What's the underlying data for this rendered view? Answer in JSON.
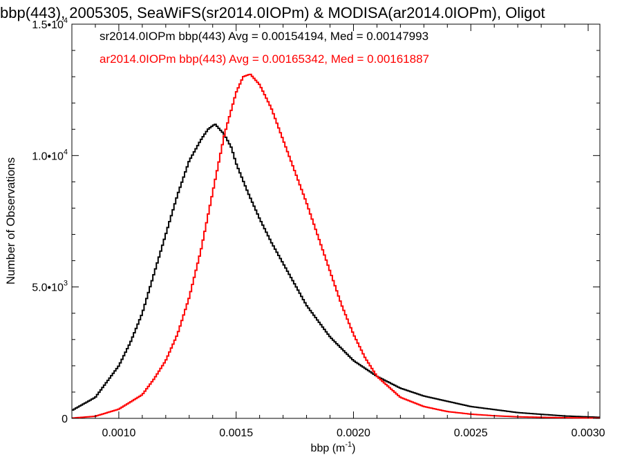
{
  "chart_data": {
    "type": "line",
    "title": "bbp(443), 2005305, SeaWiFS(sr2014.0IOPm) & MODISA(ar2014.0IOPm), Oligot",
    "xlabel": "bbp (m",
    "xlabel_sup": "-1",
    "xlabel_close": ")",
    "ylabel": "Number of Observations",
    "xlim": [
      0.0008,
      0.00305
    ],
    "ylim": [
      0,
      15000
    ],
    "x_ticks": [
      {
        "value": 0.001,
        "label": "0.0010"
      },
      {
        "value": 0.0015,
        "label": "0.0015"
      },
      {
        "value": 0.002,
        "label": "0.0020"
      },
      {
        "value": 0.0025,
        "label": "0.0025"
      },
      {
        "value": 0.003,
        "label": "0.0030"
      }
    ],
    "y_ticks": [
      {
        "value": 0,
        "mant": "0",
        "exp": ""
      },
      {
        "value": 5000,
        "mant": "5.0•10",
        "exp": "3"
      },
      {
        "value": 10000,
        "mant": "1.0•10",
        "exp": "4"
      },
      {
        "value": 15000,
        "mant": "1.5•10",
        "exp": "4"
      }
    ],
    "bin_width": 7.5e-06,
    "annotations": [
      {
        "text": "sr2014.0IOPm bbp(443) Avg = 0.00154194, Med = 0.00147993",
        "color": "#000000"
      },
      {
        "text": "ar2014.0IOPm bbp(443) Avg = 0.00165342, Med = 0.00161887",
        "color": "#ff0000"
      }
    ],
    "series": [
      {
        "color": "#000000",
        "x": [
          0.0008,
          0.0009,
          0.001,
          0.00105,
          0.0011,
          0.00115,
          0.0012,
          0.00125,
          0.0013,
          0.00135,
          0.00138,
          0.00141,
          0.00145,
          0.00148,
          0.0015,
          0.00155,
          0.0016,
          0.00165,
          0.0017,
          0.00175,
          0.0018,
          0.0019,
          0.002,
          0.0021,
          0.0022,
          0.0023,
          0.0025,
          0.0027,
          0.0029,
          0.00305
        ],
        "y": [
          300,
          800,
          2000,
          2900,
          4000,
          5500,
          7000,
          8500,
          9800,
          10600,
          11000,
          11200,
          10800,
          10300,
          9700,
          8600,
          7600,
          6700,
          5900,
          5100,
          4300,
          3100,
          2200,
          1600,
          1150,
          850,
          450,
          220,
          90,
          40
        ]
      },
      {
        "color": "#ff0000",
        "x": [
          0.0008,
          0.0009,
          0.001,
          0.0011,
          0.00115,
          0.0012,
          0.00125,
          0.0013,
          0.00135,
          0.0014,
          0.00145,
          0.0015,
          0.00153,
          0.00156,
          0.0016,
          0.00165,
          0.0017,
          0.00175,
          0.0018,
          0.00185,
          0.0019,
          0.00195,
          0.002,
          0.00205,
          0.0021,
          0.0022,
          0.0023,
          0.0024,
          0.0025,
          0.0026,
          0.0027,
          0.0028,
          0.0029,
          0.00305
        ],
        "y": [
          10,
          80,
          350,
          900,
          1500,
          2200,
          3200,
          4600,
          6400,
          8600,
          10800,
          12400,
          13000,
          13100,
          12700,
          11800,
          10600,
          9400,
          8200,
          6900,
          5600,
          4300,
          3200,
          2300,
          1600,
          800,
          450,
          260,
          160,
          100,
          60,
          40,
          25,
          10
        ]
      }
    ]
  }
}
